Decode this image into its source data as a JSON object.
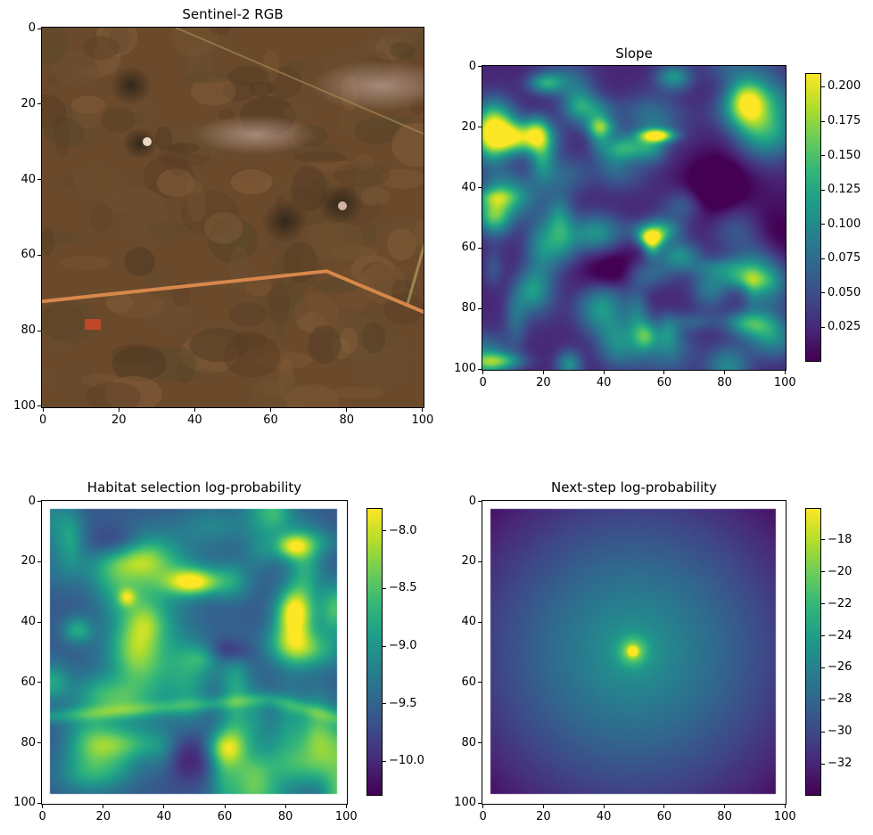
{
  "chart_data": [
    {
      "type": "heatmap",
      "title": "Sentinel-2 RGB",
      "colormap": "rgb",
      "xlim": [
        0,
        101
      ],
      "ylim": [
        101,
        0
      ],
      "xticks": [
        "0",
        "20",
        "40",
        "60",
        "80",
        "100"
      ],
      "yticks": [
        "0",
        "20",
        "40",
        "60",
        "80",
        "100"
      ],
      "features": {
        "base_color": "#6b4a2c",
        "road_color": "#d8874b",
        "road_polyline": [
          [
            0,
            72
          ],
          [
            75,
            64
          ],
          [
            101,
            75
          ]
        ]
      }
    },
    {
      "type": "heatmap",
      "title": "Slope",
      "colormap": "viridis",
      "xlim": [
        0,
        101
      ],
      "ylim": [
        101,
        0
      ],
      "xticks": [
        "0",
        "20",
        "40",
        "60",
        "80",
        "100"
      ],
      "yticks": [
        "0",
        "20",
        "40",
        "60",
        "80",
        "100"
      ],
      "colorbar": {
        "min": 0.0,
        "max": 0.21,
        "ticks": [
          "0.025",
          "0.050",
          "0.075",
          "0.100",
          "0.125",
          "0.150",
          "0.175",
          "0.200"
        ]
      }
    },
    {
      "type": "heatmap",
      "title": "Habitat selection log-probability",
      "colormap": "viridis",
      "xlim": [
        0,
        101
      ],
      "ylim": [
        101,
        0
      ],
      "xticks": [
        "0",
        "20",
        "40",
        "60",
        "80",
        "100"
      ],
      "yticks": [
        "0",
        "20",
        "40",
        "60",
        "80",
        "100"
      ],
      "colorbar": {
        "min": -10.3,
        "max": -7.8,
        "ticks": [
          "−8.0",
          "−8.5",
          "−9.0",
          "−9.5",
          "−10.0"
        ]
      }
    },
    {
      "type": "heatmap",
      "title": "Next-step log-probability",
      "colormap": "viridis",
      "xlim": [
        0,
        101
      ],
      "ylim": [
        101,
        0
      ],
      "xticks": [
        "0",
        "20",
        "40",
        "60",
        "80",
        "100"
      ],
      "yticks": [
        "0",
        "20",
        "40",
        "60",
        "80",
        "100"
      ],
      "peak": [
        50,
        50
      ],
      "colorbar": {
        "min": -34,
        "max": -16,
        "ticks": [
          "−18",
          "−20",
          "−22",
          "−24",
          "−26",
          "−28",
          "−30",
          "−32"
        ]
      }
    }
  ]
}
